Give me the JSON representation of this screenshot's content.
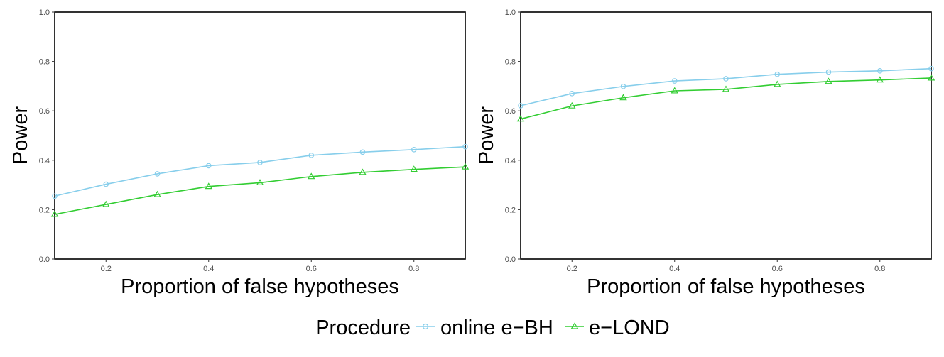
{
  "chart_data": [
    {
      "type": "line",
      "xlabel": "Proportion of false hypotheses",
      "ylabel": "Power",
      "xlim": [
        0.1,
        0.9
      ],
      "ylim": [
        0.0,
        1.0
      ],
      "x": [
        0.1,
        0.2,
        0.3,
        0.4,
        0.5,
        0.6,
        0.7,
        0.8,
        0.9
      ],
      "xticks": [
        "0.2",
        "0.4",
        "0.6",
        "0.8"
      ],
      "yticks": [
        "0.0",
        "0.2",
        "0.4",
        "0.6",
        "0.8",
        "1.0"
      ],
      "grid": false,
      "series": [
        {
          "name": "online e−BH",
          "marker": "circle",
          "color": "#87CEEB",
          "values": [
            0.255,
            0.303,
            0.345,
            0.378,
            0.391,
            0.42,
            0.433,
            0.443,
            0.455
          ]
        },
        {
          "name": "e−LOND",
          "marker": "triangle",
          "color": "#32CD32",
          "values": [
            0.181,
            0.221,
            0.261,
            0.294,
            0.309,
            0.334,
            0.351,
            0.363,
            0.373
          ]
        }
      ]
    },
    {
      "type": "line",
      "xlabel": "Proportion of false hypotheses",
      "ylabel": "Power",
      "xlim": [
        0.1,
        0.9
      ],
      "ylim": [
        0.0,
        1.0
      ],
      "x": [
        0.1,
        0.2,
        0.3,
        0.4,
        0.5,
        0.6,
        0.7,
        0.8,
        0.9
      ],
      "xticks": [
        "0.2",
        "0.4",
        "0.6",
        "0.8"
      ],
      "yticks": [
        "0.0",
        "0.2",
        "0.4",
        "0.6",
        "0.8",
        "1.0"
      ],
      "grid": false,
      "series": [
        {
          "name": "online e−BH",
          "marker": "circle",
          "color": "#87CEEB",
          "values": [
            0.621,
            0.67,
            0.699,
            0.721,
            0.73,
            0.748,
            0.757,
            0.762,
            0.771
          ]
        },
        {
          "name": "e−LOND",
          "marker": "triangle",
          "color": "#32CD32",
          "values": [
            0.567,
            0.62,
            0.653,
            0.681,
            0.687,
            0.707,
            0.719,
            0.725,
            0.733
          ]
        }
      ]
    }
  ],
  "legend": {
    "title": "Procedure",
    "items": [
      {
        "label": "online e−BH",
        "marker": "circle",
        "color": "#87CEEB"
      },
      {
        "label": "e−LOND",
        "marker": "triangle",
        "color": "#32CD32"
      }
    ],
    "placement": "bottom"
  }
}
